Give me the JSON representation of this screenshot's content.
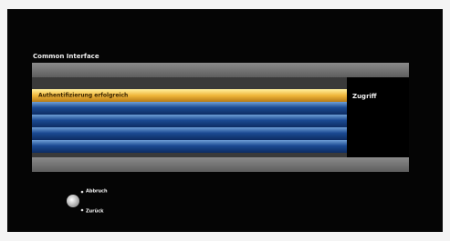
{
  "screen": {
    "title": "Common Interface",
    "items": [
      "Authentifizierung erfolgreich"
    ],
    "side_label": "Zugriff",
    "hints": [
      "Abbruch",
      "Zurück"
    ]
  }
}
